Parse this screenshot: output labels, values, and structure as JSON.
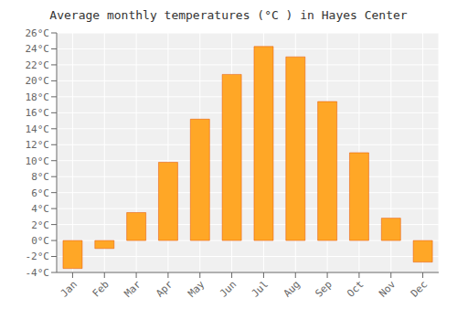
{
  "chart_data": {
    "type": "bar",
    "title": "Average monthly temperatures (°C ) in Hayes Center",
    "categories": [
      "Jan",
      "Feb",
      "Mar",
      "Apr",
      "May",
      "Jun",
      "Jul",
      "Aug",
      "Sep",
      "Oct",
      "Nov",
      "Dec"
    ],
    "values": [
      -3.5,
      -1.0,
      3.5,
      9.8,
      15.2,
      20.8,
      24.3,
      23.0,
      17.4,
      11.0,
      2.8,
      -2.7
    ],
    "color": "#FFA726",
    "ylim": [
      -4,
      26
    ],
    "yticks": [
      {
        "value": -4,
        "label": "-4°C"
      },
      {
        "value": -2,
        "label": "-2°C"
      },
      {
        "value": 0,
        "label": "0°C"
      },
      {
        "value": 2,
        "label": "2°C"
      },
      {
        "value": 4,
        "label": "4°C"
      },
      {
        "value": 6,
        "label": "6°C"
      },
      {
        "value": 8,
        "label": "8°C"
      },
      {
        "value": 10,
        "label": "10°C"
      },
      {
        "value": 12,
        "label": "12°C"
      },
      {
        "value": 14,
        "label": "14°C"
      },
      {
        "value": 16,
        "label": "16°C"
      },
      {
        "value": 18,
        "label": "18°C"
      },
      {
        "value": 20,
        "label": "20°C"
      },
      {
        "value": 22,
        "label": "22°C"
      },
      {
        "value": 24,
        "label": "24°C"
      },
      {
        "value": 26,
        "label": "26°C"
      }
    ],
    "grid": true
  }
}
